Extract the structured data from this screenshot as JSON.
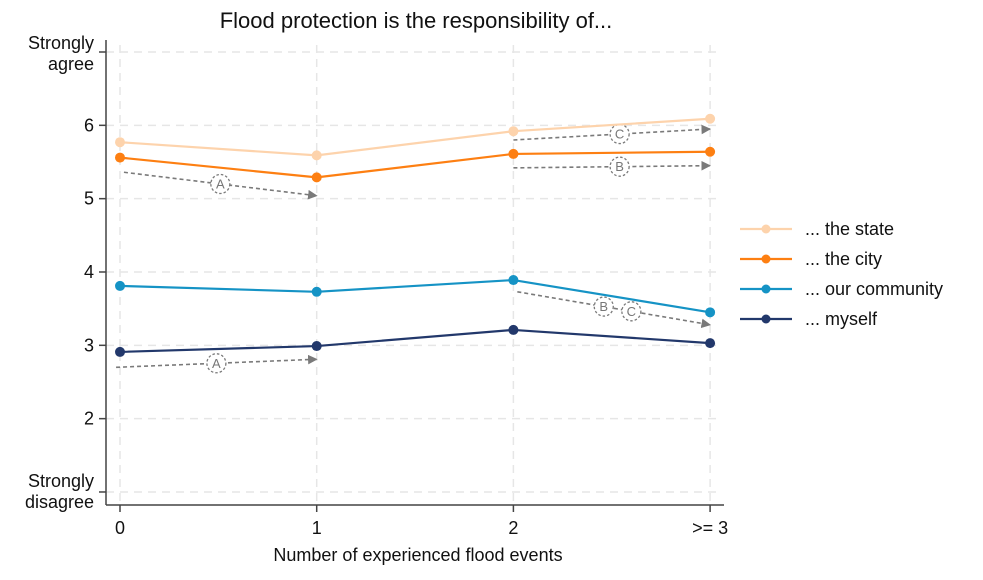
{
  "chart_data": {
    "type": "line",
    "title": "Flood protection is the responsibility of...",
    "xlabel": "Number of experienced flood events",
    "ylabel": "",
    "categories": [
      "0",
      "1",
      "2",
      ">= 3"
    ],
    "x": [
      0,
      1,
      2,
      3
    ],
    "xlim": [
      -0.02,
      3.06
    ],
    "ylim": [
      0.8,
      7.3
    ],
    "grid": true,
    "legend_position": "right",
    "yticks": [
      {
        "value": 7,
        "label": [
          "Strongly",
          "agree"
        ]
      },
      {
        "value": 6,
        "label": [
          "6"
        ]
      },
      {
        "value": 5,
        "label": [
          "5"
        ]
      },
      {
        "value": 4,
        "label": [
          "4"
        ]
      },
      {
        "value": 3,
        "label": [
          "3"
        ]
      },
      {
        "value": 2,
        "label": [
          "2"
        ]
      },
      {
        "value": 1,
        "label": [
          "Strongly",
          "disagree"
        ]
      }
    ],
    "series": [
      {
        "name": "... the state",
        "color": "#fdd3ac",
        "values": [
          5.77,
          5.59,
          5.92,
          6.09
        ]
      },
      {
        "name": "... the city",
        "color": "#fd7f12",
        "values": [
          5.56,
          5.29,
          5.61,
          5.64
        ]
      },
      {
        "name": "... our community",
        "color": "#1593c5",
        "values": [
          3.81,
          3.73,
          3.89,
          3.45
        ]
      },
      {
        "name": "... myself",
        "color": "#22386b",
        "values": [
          2.91,
          2.99,
          3.21,
          3.03
        ]
      }
    ],
    "annotations": [
      {
        "labels": [
          "A"
        ],
        "from": [
          0.02,
          5.36
        ],
        "to": [
          1.0,
          5.04
        ],
        "label_at": 0.5
      },
      {
        "labels": [
          "C"
        ],
        "from": [
          2.0,
          5.8
        ],
        "to": [
          3.0,
          5.95
        ],
        "label_at": 0.54
      },
      {
        "labels": [
          "B"
        ],
        "from": [
          2.0,
          5.42
        ],
        "to": [
          3.0,
          5.45
        ],
        "label_at": 0.54
      },
      {
        "labels": [
          "B",
          "C"
        ],
        "from": [
          2.02,
          3.73
        ],
        "to": [
          3.0,
          3.28
        ],
        "label_at": 0.52
      },
      {
        "labels": [
          "A"
        ],
        "from": [
          -0.02,
          2.7
        ],
        "to": [
          1.0,
          2.81
        ],
        "label_at": 0.5
      }
    ],
    "annotation_color": "#7a7a7a"
  }
}
